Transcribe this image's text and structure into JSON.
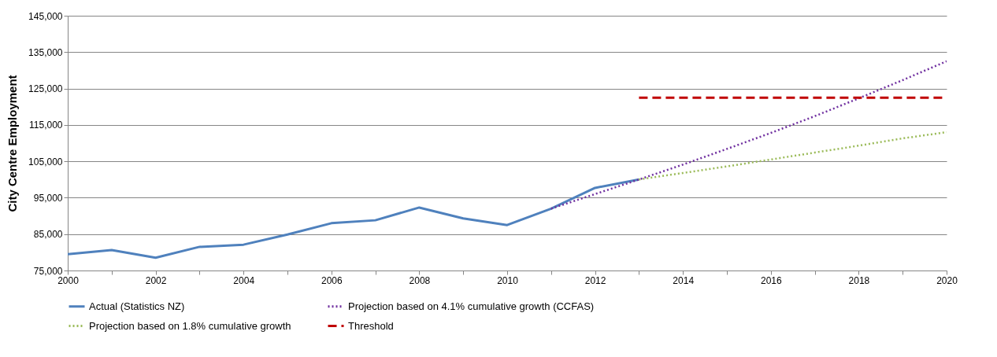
{
  "chart_data": {
    "type": "line",
    "ylabel": "City Centre Employment",
    "xlim": [
      2000,
      2020
    ],
    "ylim": [
      75000,
      145000
    ],
    "xticks": [
      2000,
      {
        "value": 2001,
        "label": null
      },
      2002,
      {
        "value": 2003,
        "label": null
      },
      2004,
      {
        "value": 2005,
        "label": null
      },
      2006,
      {
        "value": 2007,
        "label": null
      },
      2008,
      {
        "value": 2009,
        "label": null
      },
      2010,
      {
        "value": 2011,
        "label": null
      },
      2012,
      {
        "value": 2013,
        "label": null
      },
      2014,
      {
        "value": 2015,
        "label": null
      },
      2016,
      {
        "value": 2017,
        "label": null
      },
      2018,
      {
        "value": 2019,
        "label": null
      },
      2020
    ],
    "yticks": [
      {
        "value": 75000,
        "label": "75,000"
      },
      {
        "value": 85000,
        "label": "85,000"
      },
      {
        "value": 95000,
        "label": "95,000"
      },
      {
        "value": 105000,
        "label": "105,000"
      },
      {
        "value": 115000,
        "label": "115,000"
      },
      {
        "value": 125000,
        "label": "125,000"
      },
      {
        "value": 135000,
        "label": "135,000"
      },
      {
        "value": 145000,
        "label": "145,000"
      }
    ],
    "grid": "y",
    "legend": "bottom",
    "series": [
      {
        "name": "Actual (Statistics NZ)",
        "color": "#4f81bd",
        "line_style": "solid",
        "x": [
          2000,
          2001,
          2002,
          2003,
          2004,
          2005,
          2006,
          2007,
          2008,
          2009,
          2010,
          2011,
          2012,
          2013
        ],
        "values": [
          79500,
          80600,
          78500,
          81500,
          82100,
          84900,
          88000,
          88800,
          92300,
          89300,
          87500,
          92000,
          97700,
          100000
        ]
      },
      {
        "name": "Projection based on 4.1% cumulative growth (CCFAS)",
        "color": "#7030a0",
        "line_style": "dotted",
        "x": [
          2011,
          2012,
          2013,
          2014,
          2015,
          2016,
          2017,
          2018,
          2019,
          2020
        ],
        "values": [
          92000,
          96000,
          100000,
          104100,
          108400,
          112800,
          117400,
          122300,
          127300,
          132500
        ]
      },
      {
        "name": "Projection based on 1.8% cumulative growth",
        "color": "#9bbb59",
        "line_style": "dotted",
        "x": [
          2013,
          2014,
          2015,
          2016,
          2017,
          2018,
          2019,
          2020
        ],
        "values": [
          100000,
          101800,
          103600,
          105500,
          107400,
          109300,
          111300,
          113000
        ]
      },
      {
        "name": "Threshold",
        "color": "#c00000",
        "line_style": "dashed",
        "x": [
          2013,
          2020
        ],
        "values": [
          122500,
          122500
        ]
      }
    ]
  }
}
